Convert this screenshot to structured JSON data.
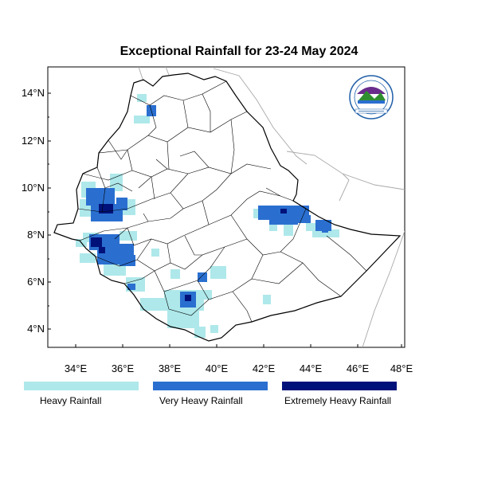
{
  "title": "Exceptional Rainfall for 23-24 May 2024",
  "axes": {
    "lon_ticks": [
      "34°E",
      "36°E",
      "38°E",
      "40°E",
      "42°E",
      "44°E",
      "46°E",
      "48°E"
    ],
    "lat_ticks": [
      "14°N",
      "12°N",
      "10°N",
      "8°N",
      "6°N",
      "4°N"
    ]
  },
  "legend": [
    {
      "label": "Heavy Rainfall",
      "color": "#aee8ea"
    },
    {
      "label": "Very Heavy Rainfall",
      "color": "#2a6fd0"
    },
    {
      "label": "Extremely Heavy Rainfall",
      "color": "#00127a"
    }
  ],
  "logo": {
    "icon": "ethiopian-meteorology-institute-logo"
  }
}
